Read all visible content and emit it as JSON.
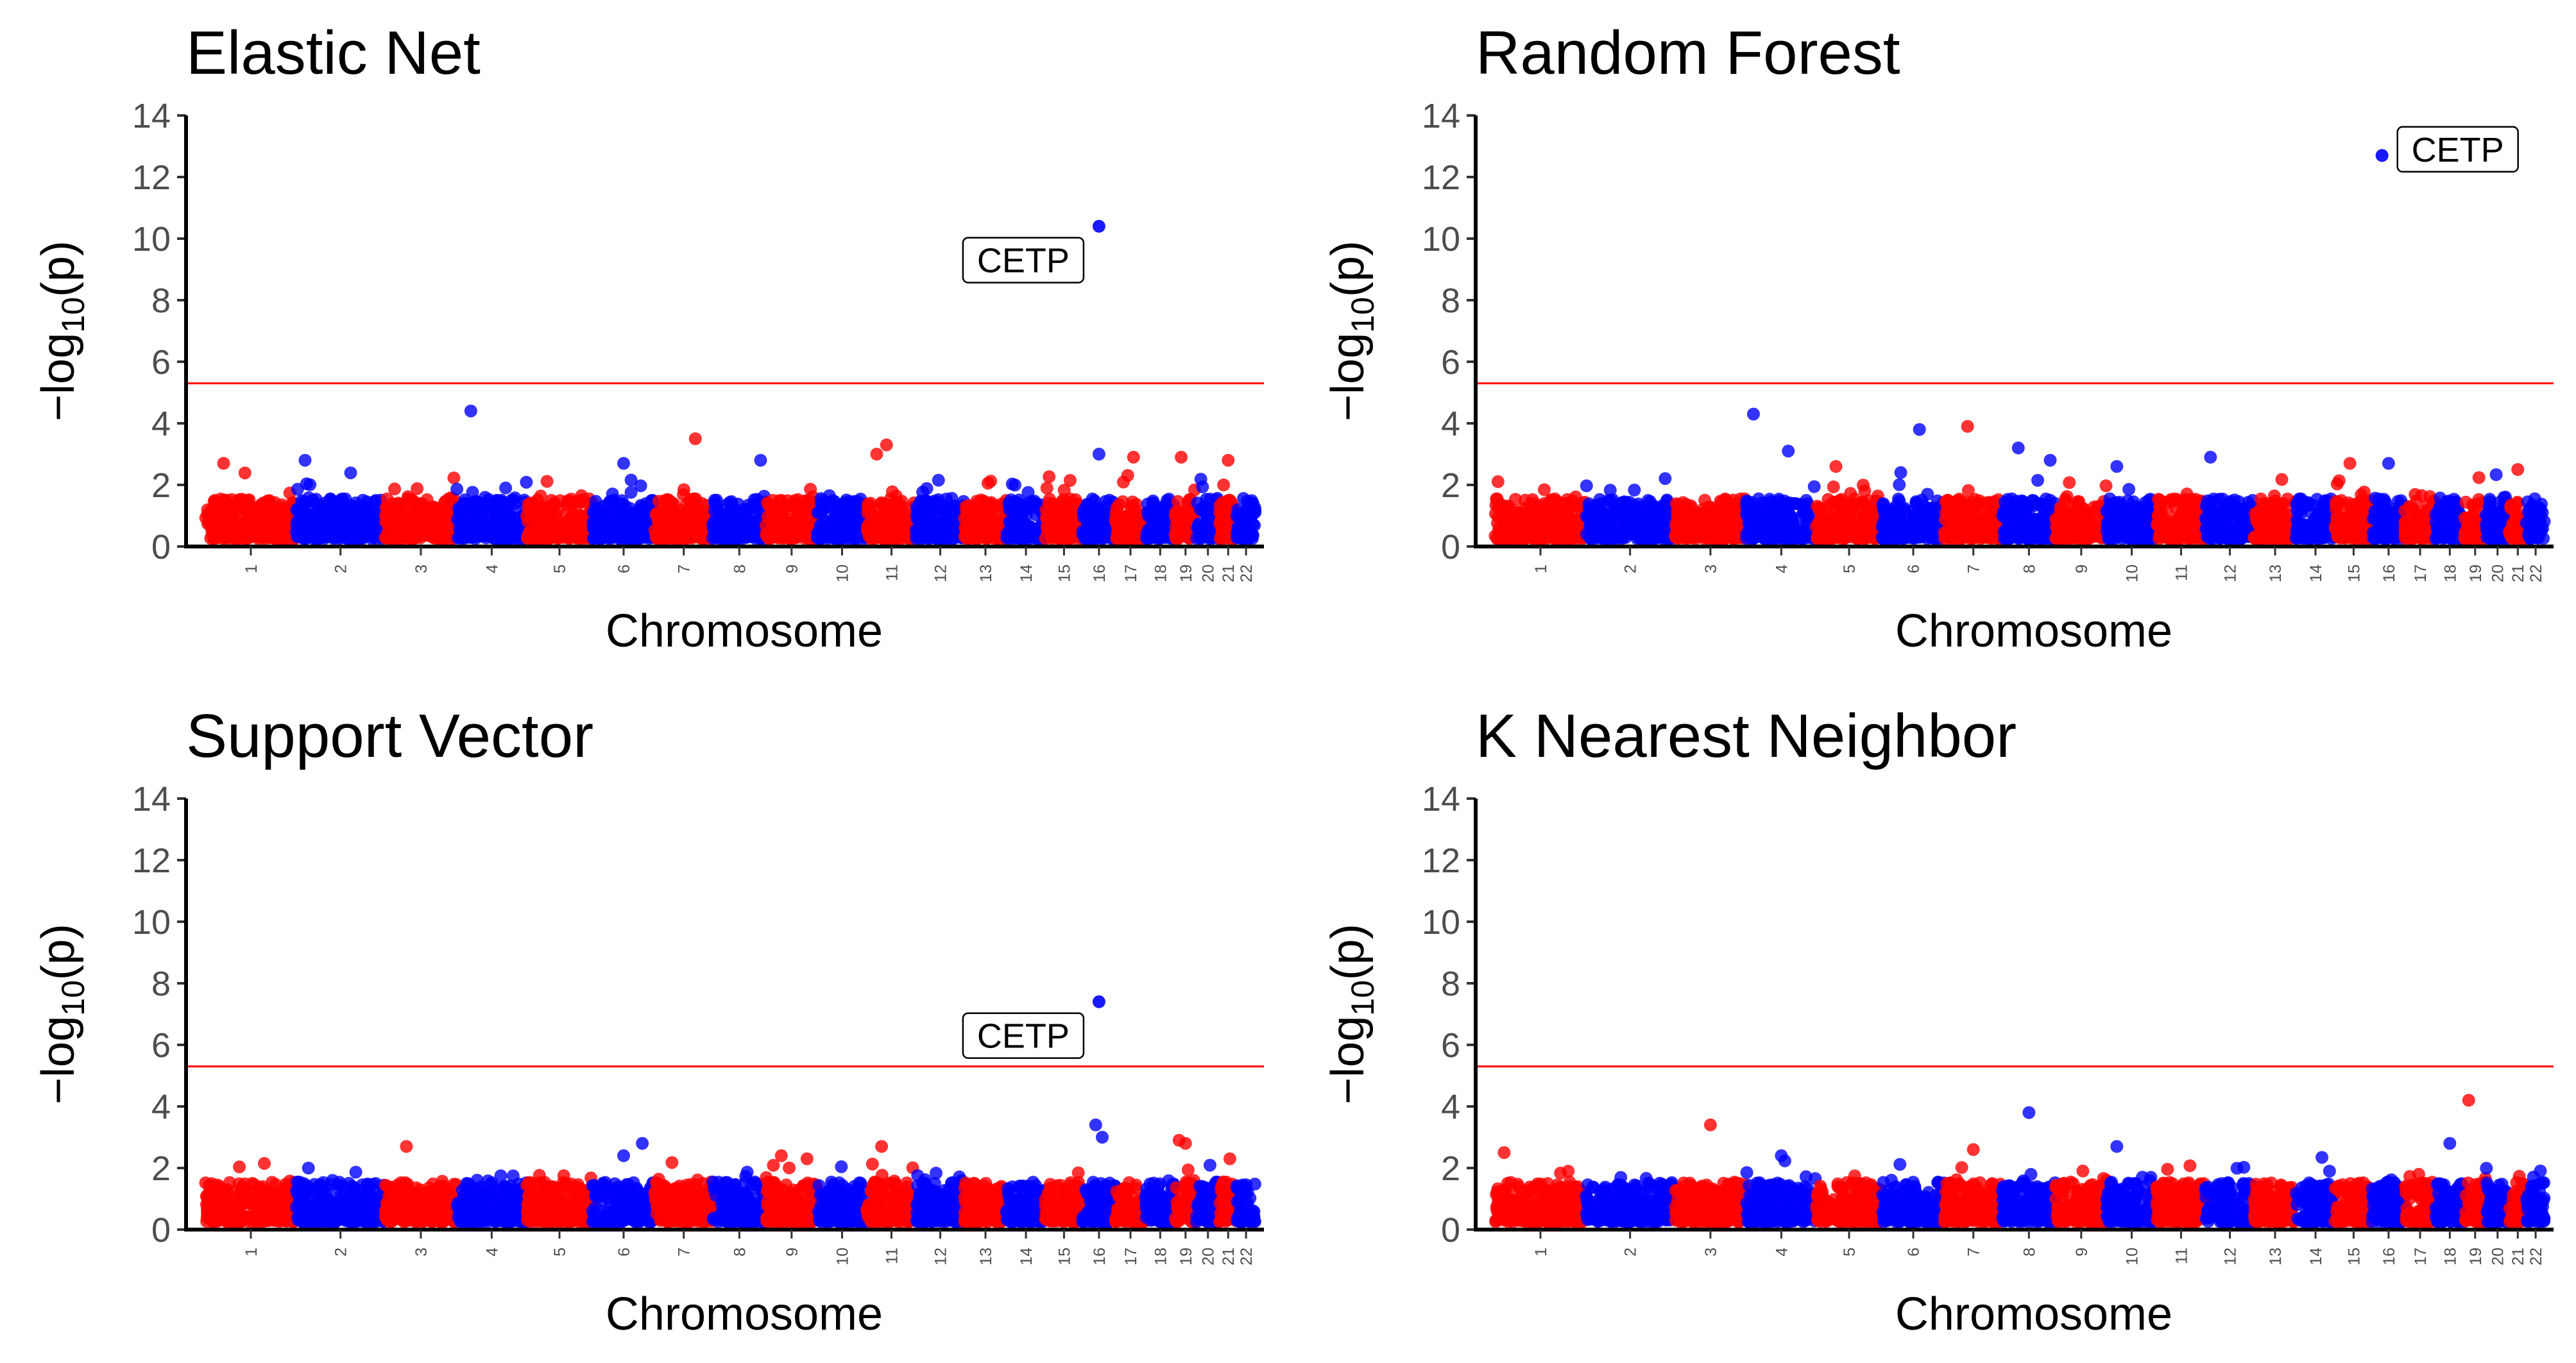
{
  "chart_data": [
    {
      "type": "scatter",
      "title": "Elastic Net",
      "xlabel": "Chromosome",
      "ylabel": "−log10(p)",
      "ylim": [
        0,
        14
      ],
      "yticks": [
        "0",
        "2",
        "4",
        "6",
        "8",
        "10",
        "12",
        "14"
      ],
      "threshold": 5.3,
      "threshold_color": "#ff0000",
      "series_colors": [
        "#ff0000",
        "#0000ff"
      ],
      "seed": 11,
      "grid": false,
      "annotation": {
        "label": "CETP",
        "chromosome": 16,
        "x_offset": 0.5,
        "y": 10.4,
        "label_y": 9.3,
        "label_side": "left"
      },
      "highlights": [
        {
          "chromosome": 1,
          "x_offset": 0.2,
          "y": 2.7
        },
        {
          "chromosome": 2,
          "x_offset": 0.1,
          "y": 2.8
        },
        {
          "chromosome": 4,
          "x_offset": 0.2,
          "y": 4.4
        },
        {
          "chromosome": 4,
          "x_offset": 0.7,
          "y": 1.9
        },
        {
          "chromosome": 6,
          "x_offset": 0.5,
          "y": 2.7
        },
        {
          "chromosome": 7,
          "x_offset": 0.7,
          "y": 3.5
        },
        {
          "chromosome": 8,
          "x_offset": 0.9,
          "y": 2.8
        },
        {
          "chromosome": 11,
          "x_offset": 0.4,
          "y": 3.3
        },
        {
          "chromosome": 11,
          "x_offset": 0.2,
          "y": 3.0
        },
        {
          "chromosome": 16,
          "x_offset": 0.5,
          "y": 3.0
        },
        {
          "chromosome": 17,
          "x_offset": 0.6,
          "y": 2.9
        },
        {
          "chromosome": 19,
          "x_offset": 0.3,
          "y": 2.9
        },
        {
          "chromosome": 21,
          "x_offset": 0.5,
          "y": 2.8
        }
      ]
    },
    {
      "type": "scatter",
      "title": "Random Forest",
      "xlabel": "Chromosome",
      "ylabel": "−log10(p)",
      "ylim": [
        0,
        14
      ],
      "yticks": [
        "0",
        "2",
        "4",
        "6",
        "8",
        "10",
        "12",
        "14"
      ],
      "threshold": 5.3,
      "threshold_color": "#ff0000",
      "series_colors": [
        "#ff0000",
        "#0000ff"
      ],
      "seed": 23,
      "grid": false,
      "annotation": {
        "label": "CETP",
        "chromosome": 16,
        "x_offset": 0.3,
        "y": 12.7,
        "label_y": 12.9,
        "label_side": "right"
      },
      "highlights": [
        {
          "chromosome": 4,
          "x_offset": 0.1,
          "y": 4.3
        },
        {
          "chromosome": 4,
          "x_offset": 0.6,
          "y": 3.1
        },
        {
          "chromosome": 6,
          "x_offset": 0.6,
          "y": 3.8
        },
        {
          "chromosome": 6,
          "x_offset": 0.3,
          "y": 2.4
        },
        {
          "chromosome": 7,
          "x_offset": 0.4,
          "y": 3.9
        },
        {
          "chromosome": 8,
          "x_offset": 0.3,
          "y": 3.2
        },
        {
          "chromosome": 8,
          "x_offset": 0.9,
          "y": 2.8
        },
        {
          "chromosome": 10,
          "x_offset": 0.2,
          "y": 2.6
        },
        {
          "chromosome": 12,
          "x_offset": 0.1,
          "y": 2.9
        },
        {
          "chromosome": 5,
          "x_offset": 0.3,
          "y": 2.6
        },
        {
          "chromosome": 15,
          "x_offset": 0.4,
          "y": 2.7
        },
        {
          "chromosome": 16,
          "x_offset": 0.5,
          "y": 2.7
        },
        {
          "chromosome": 21,
          "x_offset": 0.5,
          "y": 2.5
        }
      ]
    },
    {
      "type": "scatter",
      "title": "Support Vector",
      "xlabel": "Chromosome",
      "ylabel": "−log10(p)",
      "ylim": [
        0,
        14
      ],
      "yticks": [
        "0",
        "2",
        "4",
        "6",
        "8",
        "10",
        "12",
        "14"
      ],
      "threshold": 5.3,
      "threshold_color": "#ff0000",
      "series_colors": [
        "#ff0000",
        "#0000ff"
      ],
      "seed": 37,
      "grid": false,
      "annotation": {
        "label": "CETP",
        "chromosome": 16,
        "x_offset": 0.5,
        "y": 7.4,
        "label_y": 6.3,
        "label_side": "left"
      },
      "highlights": [
        {
          "chromosome": 3,
          "x_offset": 0.3,
          "y": 2.7
        },
        {
          "chromosome": 6,
          "x_offset": 0.8,
          "y": 2.8
        },
        {
          "chromosome": 6,
          "x_offset": 0.5,
          "y": 2.4
        },
        {
          "chromosome": 9,
          "x_offset": 0.3,
          "y": 2.4
        },
        {
          "chromosome": 9,
          "x_offset": 0.8,
          "y": 2.3
        },
        {
          "chromosome": 11,
          "x_offset": 0.3,
          "y": 2.7
        },
        {
          "chromosome": 16,
          "x_offset": 0.4,
          "y": 3.4
        },
        {
          "chromosome": 16,
          "x_offset": 0.6,
          "y": 3.0
        },
        {
          "chromosome": 19,
          "x_offset": 0.2,
          "y": 2.9
        },
        {
          "chromosome": 19,
          "x_offset": 0.5,
          "y": 2.8
        },
        {
          "chromosome": 21,
          "x_offset": 0.6,
          "y": 2.3
        }
      ]
    },
    {
      "type": "scatter",
      "title": "K Nearest Neighbor",
      "xlabel": "Chromosome",
      "ylabel": "−log10(p)",
      "ylim": [
        0,
        14
      ],
      "yticks": [
        "0",
        "2",
        "4",
        "6",
        "8",
        "10",
        "12",
        "14"
      ],
      "threshold": 5.3,
      "threshold_color": "#ff0000",
      "series_colors": [
        "#ff0000",
        "#0000ff"
      ],
      "seed": 53,
      "grid": false,
      "annotation": null,
      "highlights": [
        {
          "chromosome": 1,
          "x_offset": 0.1,
          "y": 2.5
        },
        {
          "chromosome": 3,
          "x_offset": 0.5,
          "y": 3.4
        },
        {
          "chromosome": 4,
          "x_offset": 0.5,
          "y": 2.4
        },
        {
          "chromosome": 7,
          "x_offset": 0.5,
          "y": 2.6
        },
        {
          "chromosome": 8,
          "x_offset": 0.5,
          "y": 3.8
        },
        {
          "chromosome": 10,
          "x_offset": 0.2,
          "y": 2.7
        },
        {
          "chromosome": 18,
          "x_offset": 0.5,
          "y": 2.8
        },
        {
          "chromosome": 19,
          "x_offset": 0.2,
          "y": 4.2
        }
      ]
    }
  ],
  "chromosomes": [
    "1",
    "2",
    "3",
    "4",
    "5",
    "6",
    "7",
    "8",
    "9",
    "10",
    "11",
    "12",
    "13",
    "14",
    "15",
    "16",
    "17",
    "18",
    "19",
    "20",
    "21",
    "22"
  ],
  "chromosome_widths": [
    249,
    243,
    198,
    191,
    181,
    171,
    159,
    146,
    141,
    136,
    135,
    133,
    115,
    107,
    102,
    90,
    83,
    80,
    59,
    64,
    47,
    51
  ]
}
